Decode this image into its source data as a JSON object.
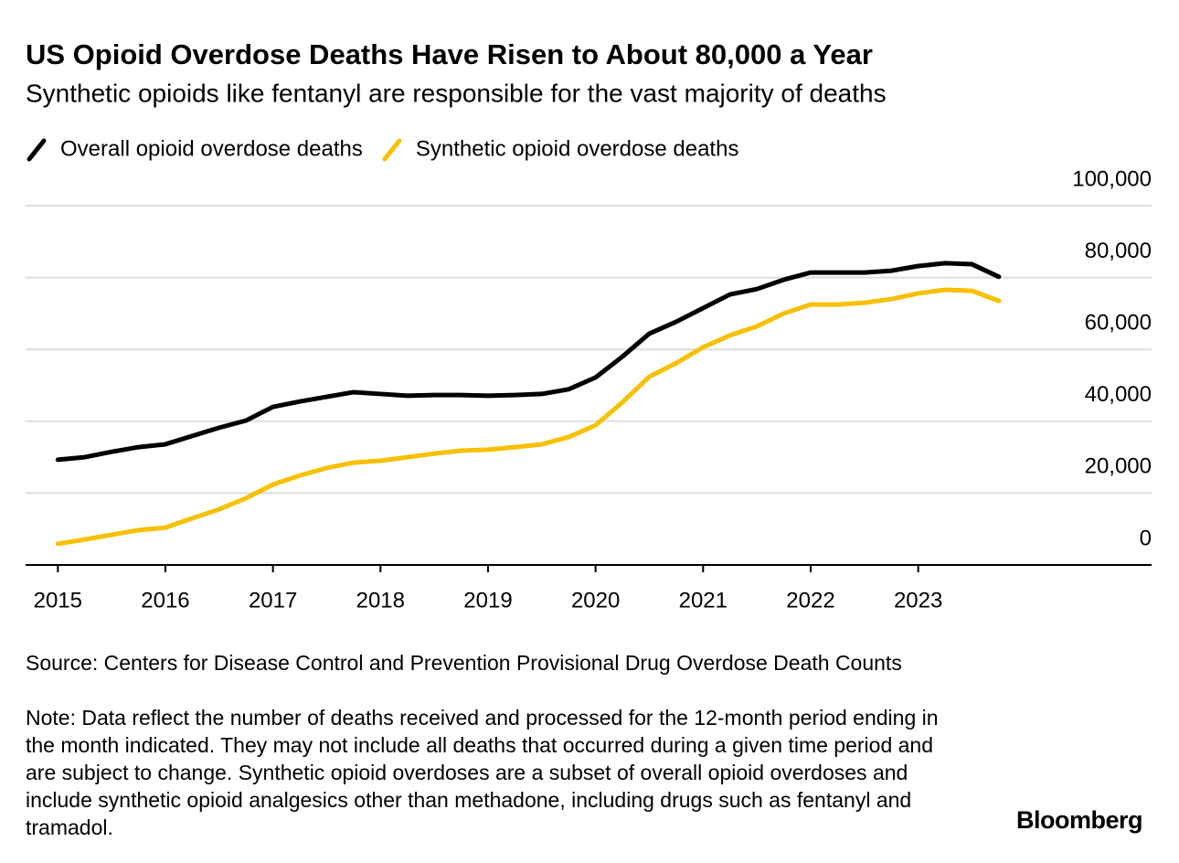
{
  "chart_data": {
    "type": "line",
    "title": "US Opioid Overdose Deaths Have Risen to About 80,000 a Year",
    "subtitle": "Synthetic opioids like fentanyl are responsible for the vast majority of deaths",
    "x": [
      2015,
      2015.25,
      2015.5,
      2015.75,
      2016,
      2016.25,
      2016.5,
      2016.75,
      2017,
      2017.25,
      2017.5,
      2017.75,
      2018,
      2018.25,
      2018.5,
      2018.75,
      2019,
      2019.25,
      2019.5,
      2019.75,
      2020,
      2020.25,
      2020.5,
      2020.75,
      2021,
      2021.25,
      2021.5,
      2021.75,
      2022,
      2022.25,
      2022.5,
      2022.75,
      2023,
      2023.25,
      2023.5,
      2023.75
    ],
    "series": [
      {
        "name": "Overall opioid overdose deaths",
        "color": "#000000",
        "values": [
          29300,
          30000,
          31500,
          32800,
          33600,
          35900,
          38200,
          40200,
          44000,
          45500,
          46800,
          48100,
          47600,
          47100,
          47300,
          47300,
          47100,
          47300,
          47600,
          48900,
          52200,
          58000,
          64400,
          67700,
          71500,
          75300,
          76800,
          79400,
          81400,
          81400,
          81400,
          81900,
          83200,
          84000,
          83700,
          80200
        ]
      },
      {
        "name": "Synthetic opioid overdose deaths",
        "color": "#f7c000",
        "values": [
          5900,
          7100,
          8400,
          9700,
          10400,
          13000,
          15500,
          18600,
          22400,
          24900,
          27000,
          28500,
          29000,
          30000,
          31000,
          31800,
          32100,
          32800,
          33600,
          35600,
          38900,
          45300,
          52400,
          56200,
          60600,
          63900,
          66400,
          70000,
          72500,
          72500,
          73000,
          74000,
          75600,
          76600,
          76300,
          73500
        ]
      }
    ],
    "xlim": [
      2014.7,
      2025.17
    ],
    "xticks": [
      2015,
      2016,
      2017,
      2018,
      2019,
      2020,
      2021,
      2022,
      2023
    ],
    "ylim": [
      0,
      100000
    ],
    "yticks": [
      0,
      {
        "value": 20000,
        "label": "20,000"
      },
      {
        "value": 40000,
        "label": "40,000"
      },
      {
        "value": 60000,
        "label": "60,000"
      },
      {
        "value": 80000,
        "label": "80,000"
      },
      {
        "value": 100000,
        "label": "100,000"
      }
    ],
    "grid": true,
    "source": "Source: Centers for Disease Control and Prevention Provisional Drug Overdose Death Counts",
    "note": "Note: Data reflect the number of deaths received and processed for the 12-month period ending in the month indicated. They may not include all deaths that occurred during a given time period and are subject to change. Synthetic opioid overdoses are a subset of overall opioid overdoses and include synthetic opioid analgesics other than methadone, including drugs such as fentanyl and tramadol.",
    "brand": "Bloomberg"
  }
}
